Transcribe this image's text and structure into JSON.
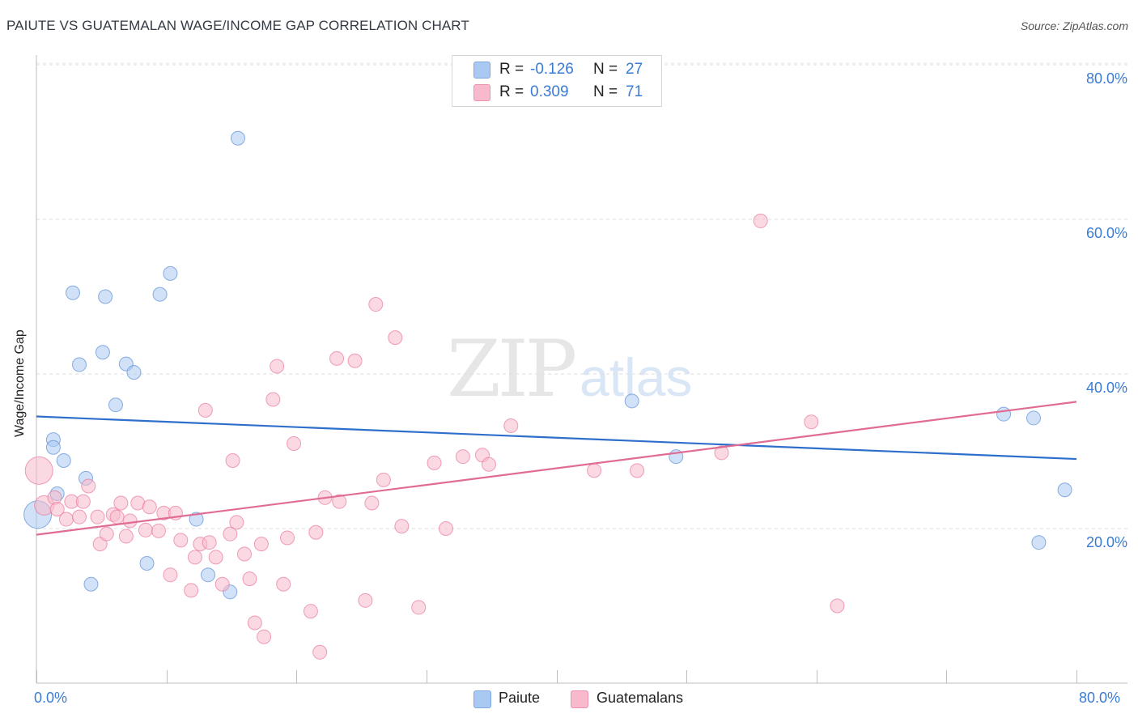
{
  "title": "PAIUTE VS GUATEMALAN WAGE/INCOME GAP CORRELATION CHART",
  "source": "Source: ZipAtlas.com",
  "watermark": {
    "zip": "ZIP",
    "atlas": "atlas"
  },
  "legend": {
    "rows": [
      {
        "r_label": "R =",
        "r_value": "-0.126",
        "n_label": "N =",
        "n_value": "27",
        "color": "#a9c9f3"
      },
      {
        "r_label": "R =",
        "r_value": "0.309",
        "n_label": "N =",
        "n_value": "71",
        "color": "#f7b9cb"
      }
    ]
  },
  "bottom_legend": {
    "paiute": "Paiute",
    "guatemalans": "Guatemalans"
  },
  "axes": {
    "x_min_label": "0.0%",
    "x_max_label": "80.0%",
    "y_labels": [
      "80.0%",
      "60.0%",
      "40.0%",
      "20.0%"
    ],
    "y_title": "Wage/Income Gap"
  },
  "chart_data": {
    "type": "scatter",
    "title": "PAIUTE VS GUATEMALAN WAGE/INCOME GAP CORRELATION CHART",
    "xlabel": "",
    "ylabel": "Wage/Income Gap",
    "xlim": [
      0,
      80
    ],
    "ylim": [
      0,
      82
    ],
    "grid": true,
    "series": [
      {
        "name": "Paiute",
        "color": "#5b8fd6",
        "fill": "#a9c9f3",
        "trend": {
          "x": [
            0,
            80
          ],
          "y": [
            34.5,
            29.0
          ]
        },
        "points": [
          [
            0.1,
            21.8,
            "large"
          ],
          [
            1.3,
            31.5
          ],
          [
            1.3,
            30.5
          ],
          [
            1.6,
            24.5
          ],
          [
            2.1,
            28.8
          ],
          [
            2.8,
            50.5
          ],
          [
            3.3,
            41.2
          ],
          [
            3.8,
            26.5
          ],
          [
            4.2,
            12.8
          ],
          [
            5.1,
            42.8
          ],
          [
            5.3,
            50.0
          ],
          [
            6.1,
            36.0
          ],
          [
            6.9,
            41.3
          ],
          [
            7.5,
            40.2
          ],
          [
            8.5,
            15.5
          ],
          [
            9.5,
            50.3
          ],
          [
            10.3,
            53.0
          ],
          [
            12.3,
            21.2
          ],
          [
            13.2,
            14.0
          ],
          [
            14.9,
            11.8
          ],
          [
            15.5,
            70.5
          ],
          [
            45.8,
            36.5
          ],
          [
            49.2,
            29.3
          ],
          [
            74.4,
            34.8
          ],
          [
            76.7,
            34.3
          ],
          [
            77.1,
            18.2
          ],
          [
            79.1,
            25.0
          ]
        ]
      },
      {
        "name": "Guatemalans",
        "color": "#e8779c",
        "fill": "#f7b9cb",
        "trend": {
          "x": [
            0,
            80
          ],
          "y": [
            19.2,
            36.4
          ]
        },
        "points": [
          [
            0.2,
            27.5,
            "large"
          ],
          [
            0.6,
            23.0,
            "medium"
          ],
          [
            1.4,
            24.0
          ],
          [
            1.6,
            22.5
          ],
          [
            2.3,
            21.2
          ],
          [
            2.7,
            23.5
          ],
          [
            3.3,
            21.5
          ],
          [
            3.6,
            23.5
          ],
          [
            4.0,
            25.5
          ],
          [
            4.7,
            21.5
          ],
          [
            4.9,
            18.0
          ],
          [
            5.4,
            19.3
          ],
          [
            5.9,
            21.8
          ],
          [
            6.2,
            21.5
          ],
          [
            6.5,
            23.3
          ],
          [
            6.9,
            19.0
          ],
          [
            7.2,
            21.0
          ],
          [
            7.8,
            23.3
          ],
          [
            8.4,
            19.8
          ],
          [
            8.7,
            22.8
          ],
          [
            9.4,
            19.7
          ],
          [
            9.8,
            22.0
          ],
          [
            10.3,
            14.0
          ],
          [
            10.7,
            22.0
          ],
          [
            11.1,
            18.5
          ],
          [
            11.9,
            12.0
          ],
          [
            12.2,
            16.3
          ],
          [
            12.6,
            18.0
          ],
          [
            13.0,
            35.3
          ],
          [
            13.3,
            18.2
          ],
          [
            13.8,
            16.3
          ],
          [
            14.3,
            12.8
          ],
          [
            14.9,
            19.3
          ],
          [
            15.1,
            28.8
          ],
          [
            15.4,
            20.8
          ],
          [
            16.0,
            16.7
          ],
          [
            16.4,
            13.5
          ],
          [
            16.8,
            7.8
          ],
          [
            17.3,
            18.0
          ],
          [
            17.5,
            6.0
          ],
          [
            18.2,
            36.7
          ],
          [
            18.5,
            41.0
          ],
          [
            19.0,
            12.8
          ],
          [
            19.3,
            18.8
          ],
          [
            19.8,
            31.0
          ],
          [
            21.1,
            9.3
          ],
          [
            21.5,
            19.5
          ],
          [
            21.8,
            4.0
          ],
          [
            22.2,
            24.0
          ],
          [
            23.1,
            42.0
          ],
          [
            23.3,
            23.5
          ],
          [
            24.5,
            41.7
          ],
          [
            25.3,
            10.7
          ],
          [
            25.8,
            23.3
          ],
          [
            26.1,
            49.0
          ],
          [
            26.7,
            26.3
          ],
          [
            27.6,
            44.7
          ],
          [
            28.1,
            20.3
          ],
          [
            29.4,
            9.8
          ],
          [
            30.6,
            28.5
          ],
          [
            31.5,
            20.0
          ],
          [
            32.8,
            29.3
          ],
          [
            34.3,
            29.5
          ],
          [
            34.8,
            28.3
          ],
          [
            36.5,
            33.3
          ],
          [
            42.9,
            27.5
          ],
          [
            46.2,
            27.5
          ],
          [
            52.7,
            29.8
          ],
          [
            55.7,
            59.8
          ],
          [
            59.6,
            33.8
          ],
          [
            61.6,
            10.0
          ]
        ]
      }
    ]
  }
}
